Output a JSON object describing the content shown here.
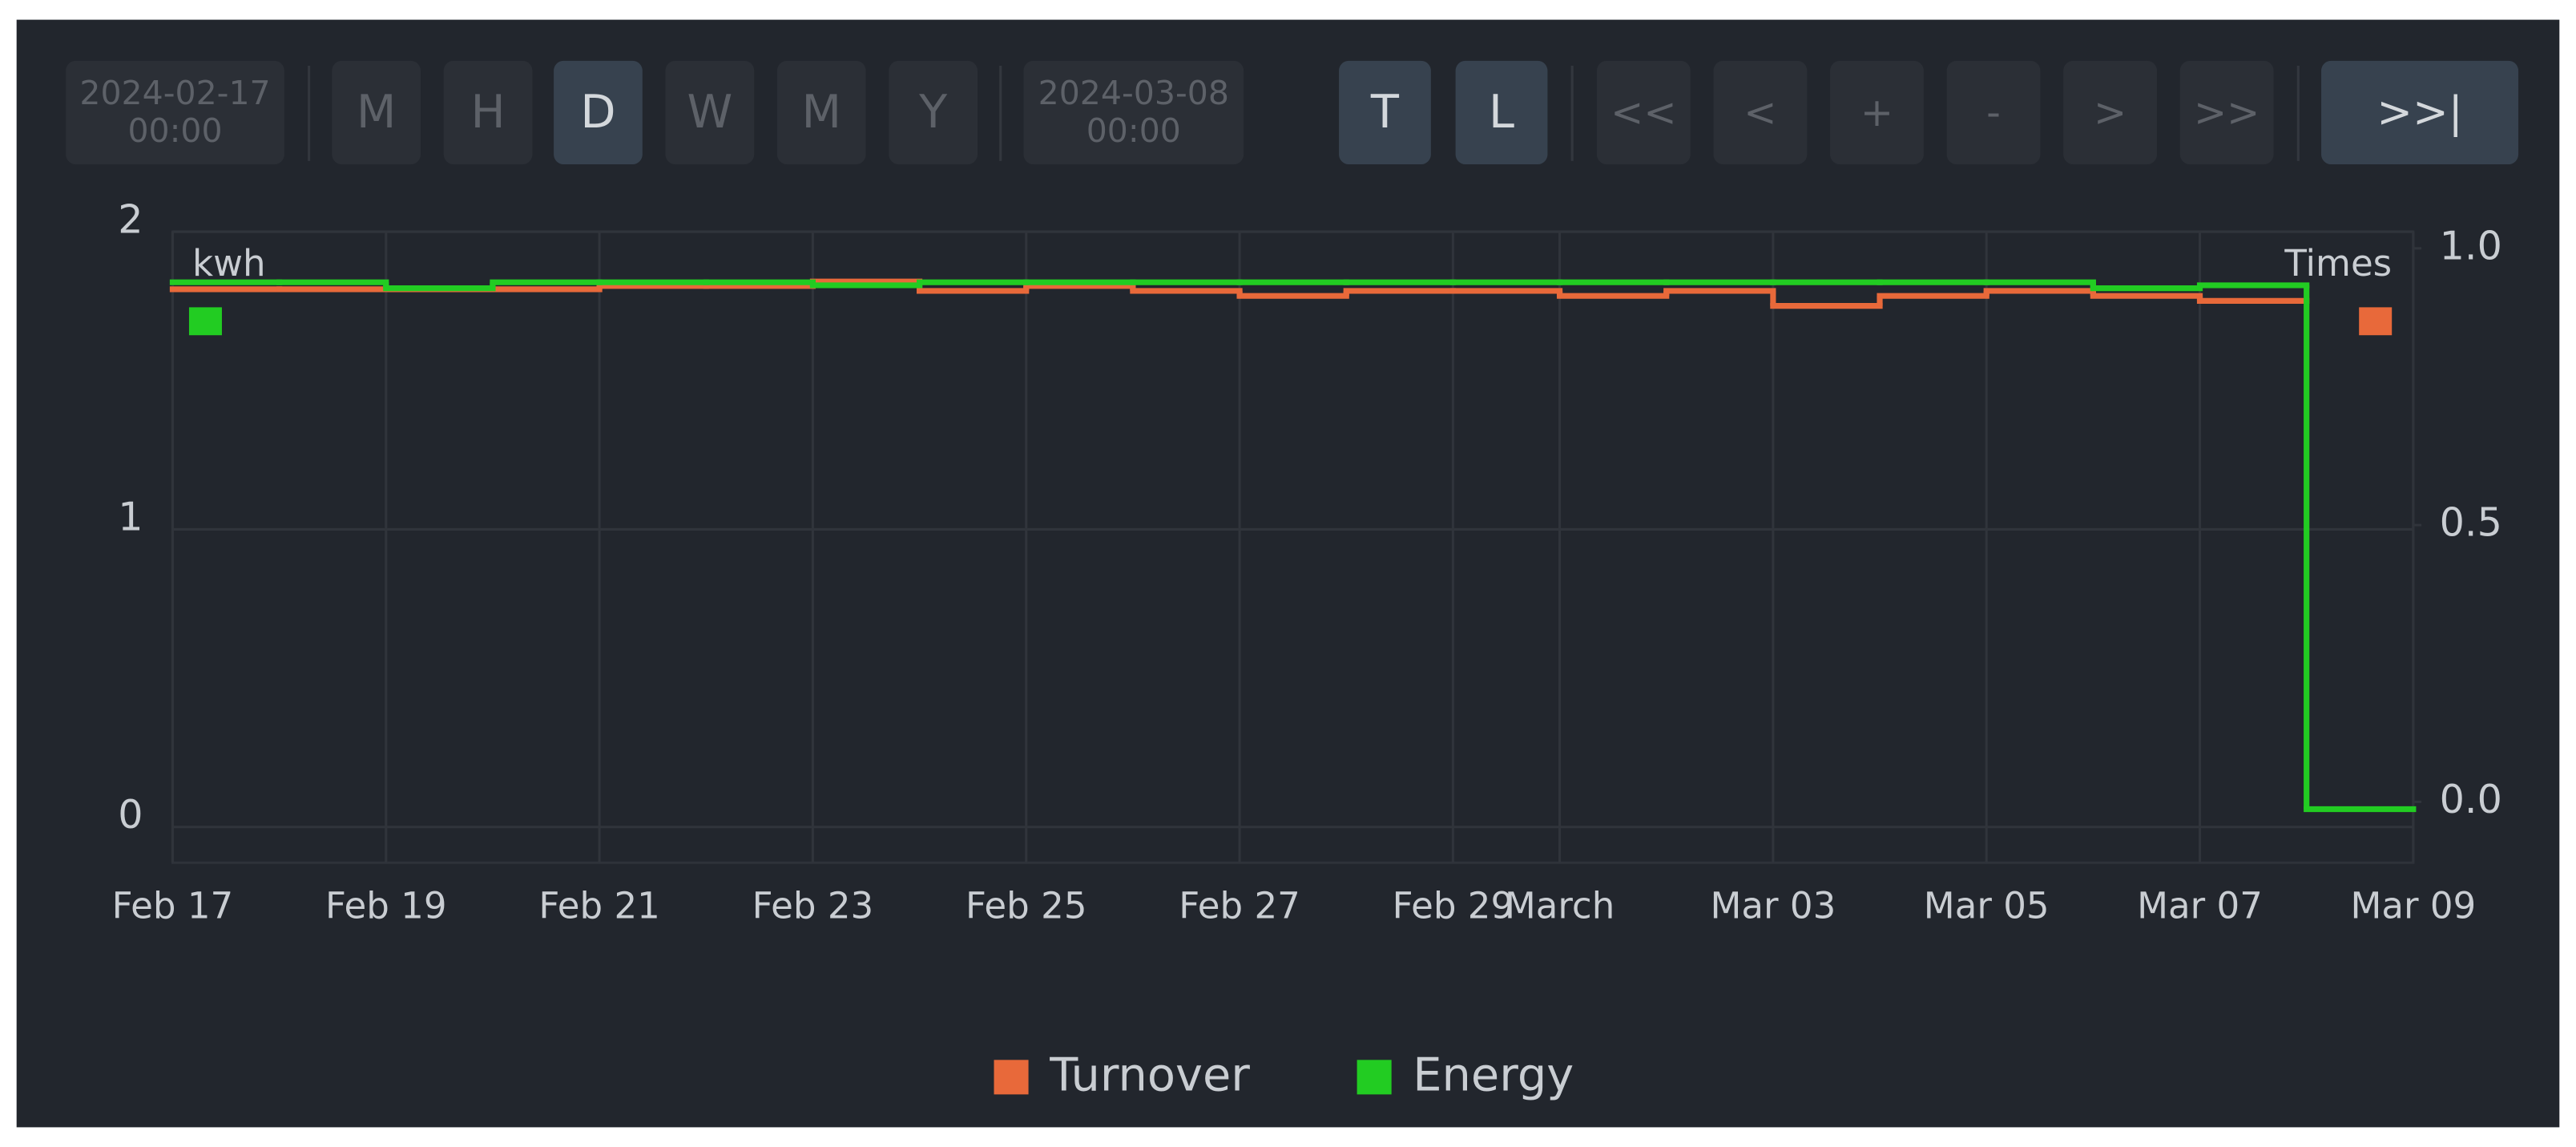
{
  "toolbar": {
    "start": [
      "2024-02-17",
      "00:00"
    ],
    "periods": [
      "M",
      "H",
      "D",
      "W",
      "M",
      "Y"
    ],
    "selected_period": 2,
    "end": [
      "2024-03-08",
      "00:00"
    ],
    "modes": [
      "T",
      "L"
    ],
    "nav": [
      "<<",
      "<",
      "+",
      "-",
      ">",
      ">>"
    ],
    "last": ">>|"
  },
  "chart_data": {
    "type": "line",
    "step": true,
    "y_label": "kwh",
    "y2_label": "Times",
    "categories": [
      "Feb 17",
      null,
      "Feb 19",
      null,
      "Feb 21",
      null,
      "Feb 23",
      null,
      "Feb 25",
      null,
      "Feb 27",
      null,
      "Feb 29",
      "March",
      null,
      "Mar 03",
      null,
      "Mar 05",
      null,
      "Mar 07",
      null,
      "Mar 09"
    ],
    "series": [
      {
        "name": "Turnover",
        "color": "#e8693a",
        "axis": "y2",
        "values": [
          0.926,
          0.926,
          0.926,
          0.926,
          0.932,
          0.932,
          0.94,
          0.923,
          0.932,
          0.923,
          0.914,
          0.923,
          0.923,
          0.914,
          0.923,
          0.896,
          0.914,
          0.923,
          0.914,
          0.905,
          null,
          null
        ]
      },
      {
        "name": "Energy",
        "color": "#22cc22",
        "values": [
          1.83,
          1.83,
          1.81,
          1.83,
          1.83,
          1.83,
          1.82,
          1.83,
          1.83,
          1.83,
          1.83,
          1.83,
          1.83,
          1.83,
          1.83,
          1.83,
          1.83,
          1.83,
          1.81,
          1.82,
          0.06,
          null
        ]
      }
    ],
    "ylim": [
      -0.12,
      2
    ],
    "yticks": [
      0,
      1,
      2
    ],
    "y2lim": [
      -0.11,
      1.03
    ],
    "y2ticks": [
      {
        "value": 0,
        "label": "0.0"
      },
      {
        "value": 0.5,
        "label": "0.5"
      },
      {
        "value": 1,
        "label": "1.0"
      }
    ],
    "grid": true,
    "legend": "bottom"
  }
}
